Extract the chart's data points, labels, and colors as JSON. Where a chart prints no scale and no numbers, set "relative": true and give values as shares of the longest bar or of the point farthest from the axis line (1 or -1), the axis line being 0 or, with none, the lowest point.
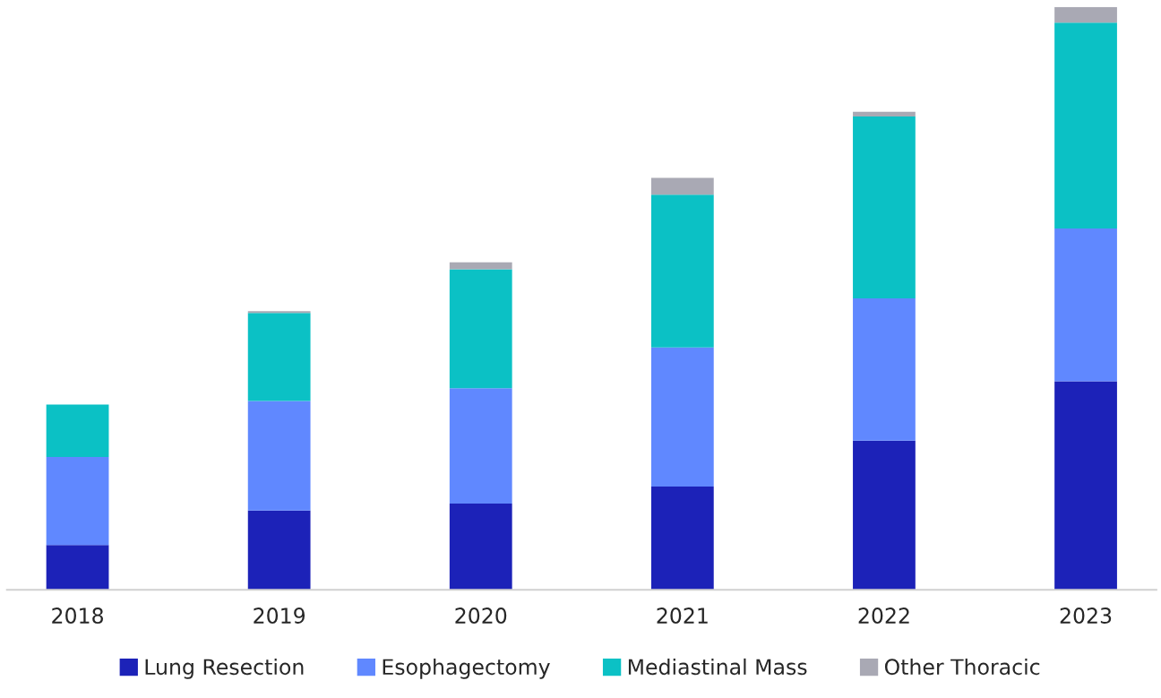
{
  "chart_data": {
    "type": "bar",
    "stacked": true,
    "relative": true,
    "legend": "bottom",
    "grid": false,
    "categories": [
      "2018",
      "2019",
      "2020",
      "2021",
      "2022",
      "2023"
    ],
    "series": [
      {
        "name": "Lung Resection",
        "color": "#1c22b8",
        "values": [
          0.077,
          0.136,
          0.148,
          0.177,
          0.256,
          0.358
        ]
      },
      {
        "name": "Esophagectomy",
        "color": "#6088ff",
        "values": [
          0.151,
          0.188,
          0.198,
          0.239,
          0.244,
          0.262
        ]
      },
      {
        "name": "Mediastinal Mass",
        "color": "#0bc1c5",
        "values": [
          0.09,
          0.151,
          0.204,
          0.262,
          0.312,
          0.353
        ]
      },
      {
        "name": "Other Thoracic",
        "color": "#a9a9b4",
        "values": [
          0,
          0.003,
          0.012,
          0.029,
          0.008,
          0.027
        ]
      }
    ]
  }
}
